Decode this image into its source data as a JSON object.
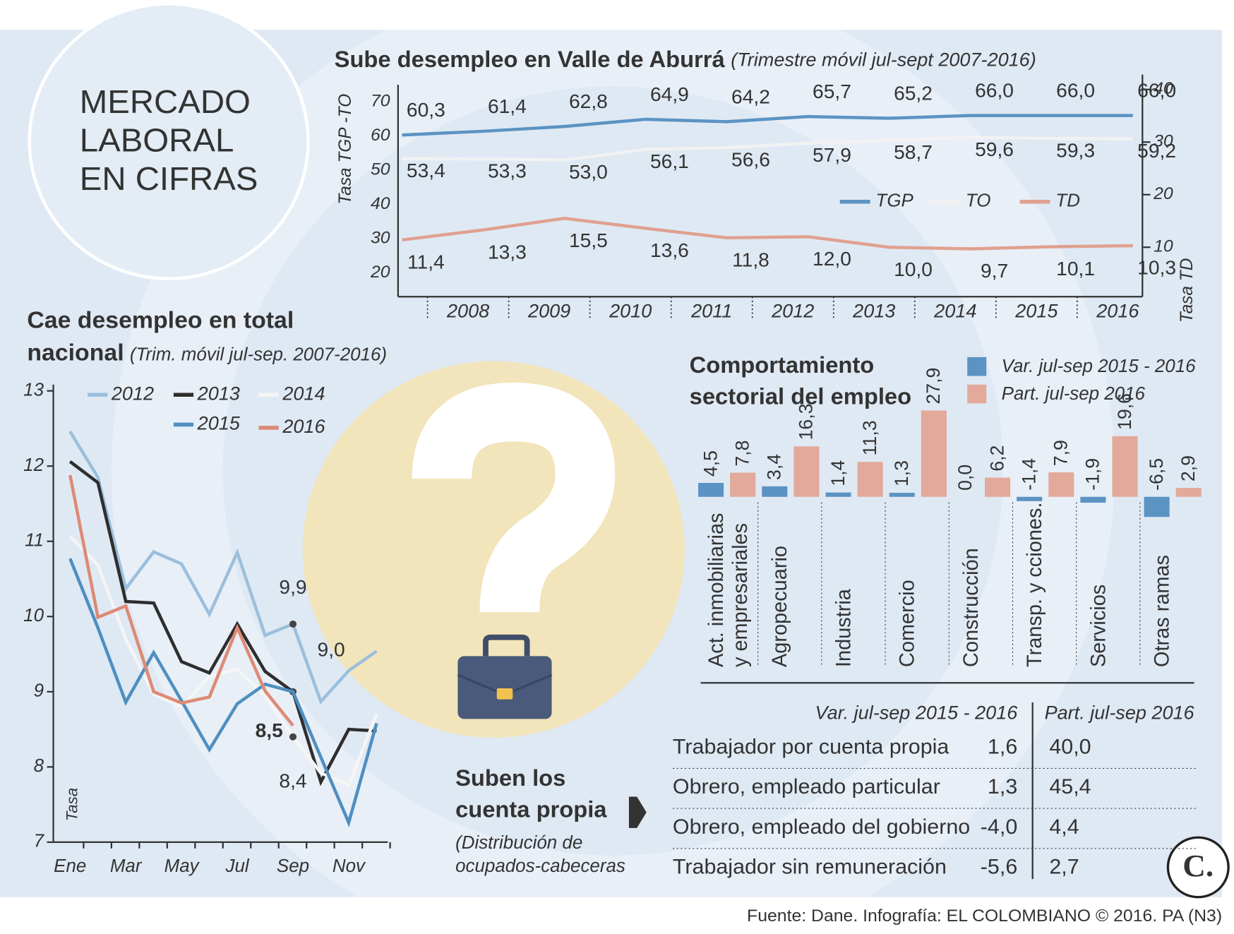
{
  "header": {
    "title": "MERCADO LABORAL EN CIFRAS"
  },
  "chart_data": [
    {
      "type": "line",
      "title": "Sube desempleo en Valle de Aburrá",
      "subtitle": "(Trimestre móvil jul-sept 2007-2016)",
      "ylabel": "Tasa TGP -TO",
      "y2label": "Tasa TD",
      "categories": [
        null,
        "2008",
        "2009",
        "2010",
        "2011",
        "2012",
        "2013",
        "2014",
        "2015",
        "2016"
      ],
      "ylim": [
        13,
        75
      ],
      "yticks": [
        20,
        30,
        40,
        50,
        60,
        70
      ],
      "y2lim": [
        0.6,
        40.9
      ],
      "y2ticks": [
        10,
        20,
        30,
        40
      ],
      "series": [
        {
          "name": "TGP",
          "color": "#5b93c3",
          "values": [
            60.3,
            61.4,
            62.8,
            64.9,
            64.2,
            65.7,
            65.2,
            66.0,
            66.0,
            66.0
          ],
          "value_labels": [
            "60,3",
            "61,4",
            "62,8",
            "64,9",
            "64,2",
            "65,7",
            "65,2",
            "66,0",
            "66,0",
            "66,0"
          ]
        },
        {
          "name": "TO",
          "color": "#f2f2f2",
          "values": [
            53.4,
            53.3,
            53.0,
            56.1,
            56.6,
            57.9,
            58.7,
            59.6,
            59.3,
            59.2
          ],
          "value_labels": [
            "53,4",
            "53,3",
            "53,0",
            "56,1",
            "56,6",
            "57,9",
            "58,7",
            "59,6",
            "59,3",
            "59,2"
          ]
        },
        {
          "name": "TD",
          "color": "#e0a090",
          "axis": "y2",
          "values": [
            11.4,
            13.3,
            15.5,
            13.6,
            11.8,
            12.0,
            10.0,
            9.7,
            10.1,
            10.3
          ],
          "value_labels": [
            "11,4",
            "13,3",
            "15,5",
            "13,6",
            "11,8",
            "12,0",
            "10,0",
            "9,7",
            "10,1",
            "10,3"
          ]
        }
      ]
    },
    {
      "type": "line",
      "title": "Cae desempleo en total nacional",
      "subtitle": "(Trim. móvil jul-sep. 2007-2016)",
      "ylabel": "Tasa",
      "categories": [
        "Ene",
        null,
        "Mar",
        null,
        "May",
        null,
        "Jul",
        null,
        "Sep",
        null,
        "Nov",
        null
      ],
      "ylim": [
        7,
        13
      ],
      "yticks": [
        7,
        8,
        9,
        10,
        11,
        12,
        13
      ],
      "series": [
        {
          "name": "2012",
          "color": "#9bbfdc",
          "values": [
            12.46,
            11.85,
            10.37,
            10.86,
            10.7,
            10.03,
            10.85,
            9.75,
            9.9,
            8.87,
            9.28,
            9.54
          ],
          "value_labels": [
            null,
            null,
            null,
            null,
            null,
            null,
            null,
            null,
            "9,9",
            null,
            null,
            null
          ]
        },
        {
          "name": "2013",
          "color": "#2e2e2e",
          "values": [
            12.06,
            11.78,
            10.2,
            10.18,
            9.4,
            9.25,
            9.9,
            9.27,
            9.0,
            7.8,
            8.5,
            8.48
          ],
          "value_labels": [
            null,
            null,
            null,
            null,
            null,
            null,
            null,
            null,
            "9,0",
            null,
            null,
            null
          ]
        },
        {
          "name": "2014",
          "color": "#f5f5f5",
          "values": [
            11.07,
            10.68,
            9.7,
            8.97,
            8.8,
            9.2,
            9.3,
            8.95,
            8.4,
            7.92,
            7.76,
            8.7
          ],
          "value_labels": [
            null,
            null,
            null,
            null,
            null,
            null,
            null,
            null,
            "8,4",
            null,
            null,
            null
          ]
        },
        {
          "name": "2015",
          "color": "#4f8fc0",
          "values": [
            10.77,
            9.85,
            8.86,
            9.52,
            8.88,
            8.23,
            8.84,
            9.1,
            9.0,
            8.13,
            7.26,
            8.58
          ]
        },
        {
          "name": "2016",
          "color": "#dd8a75",
          "values": [
            11.88,
            9.99,
            10.14,
            9.0,
            8.85,
            8.93,
            9.85,
            9.01,
            8.55,
            null,
            null,
            null
          ],
          "value_labels": [
            null,
            null,
            null,
            null,
            null,
            null,
            null,
            null,
            "8,5",
            null,
            null,
            null
          ]
        }
      ]
    },
    {
      "type": "bar",
      "title": "Comportamiento sectorial del empleo",
      "categories": [
        "Act. inmobiliarias y empresariales",
        "Agropecuario",
        "Industria",
        "Comercio",
        "Construcción",
        "Transp. y cciones.",
        "Servicios",
        "Otras ramas"
      ],
      "series": [
        {
          "name": "Var. jul-sep 2015 - 2016",
          "color": "#5b93c3",
          "values": [
            4.5,
            3.4,
            1.4,
            1.3,
            0.0,
            -1.4,
            -1.9,
            -6.5
          ],
          "value_labels": [
            "4,5",
            "3,4",
            "1,4",
            "1,3",
            "0,0",
            "-1,4",
            "-1,9",
            "-6,5"
          ]
        },
        {
          "name": "Part. jul-sep 2016",
          "color": "#e3a99a",
          "values": [
            7.8,
            16.3,
            11.3,
            27.9,
            6.2,
            7.9,
            19.6,
            2.9
          ],
          "value_labels": [
            "7,8",
            "16,3",
            "11,3",
            "27,9",
            "6,2",
            "7,9",
            "19,6",
            "2,9"
          ]
        }
      ]
    }
  ],
  "table": {
    "title": "Suben los cuenta propia",
    "subtitle": "(Distribución de ocupados-cabeceras",
    "headers": [
      "Var. jul-sep 2015 - 2016",
      "Part. jul-sep 2016"
    ],
    "rows": [
      [
        "Trabajador por cuenta propia",
        "1,6",
        "40,0"
      ],
      [
        "Obrero, empleado particular",
        "1,3",
        "45,4"
      ],
      [
        "Obrero, empleado del gobierno",
        "-4,0",
        "4,4"
      ],
      [
        "Trabajador sin remuneración",
        "-5,6",
        "2,7"
      ]
    ]
  },
  "source": "Fuente: Dane. Infografía: EL COLOMBIANO © 2016. PA (N3)",
  "logo": "C."
}
